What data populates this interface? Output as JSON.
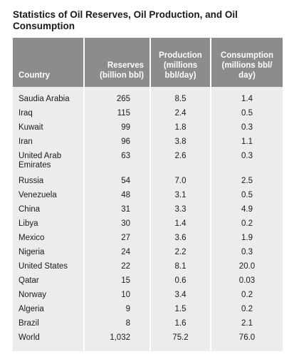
{
  "title": "Statistics of Oil Reserves, Oil Production, and Oil Consumption",
  "columns": {
    "country": "Country",
    "reserves": "Reserves (billion bbl)",
    "production": "Production (millions bbl/day)",
    "consumption": "Consumption (millions bbl/ day)"
  },
  "rows": [
    {
      "country": "Saudia Arabia",
      "reserves": "265",
      "production": "8.5",
      "consumption": "1.4"
    },
    {
      "country": "Iraq",
      "reserves": "115",
      "production": "2.4",
      "consumption": "0.5"
    },
    {
      "country": "Kuwait",
      "reserves": "99",
      "production": "1.8",
      "consumption": "0.3"
    },
    {
      "country": "Iran",
      "reserves": "96",
      "production": "3.8",
      "consumption": "1.1"
    },
    {
      "country": "United Arab Emirates",
      "reserves": "63",
      "production": "2.6",
      "consumption": "0.3"
    },
    {
      "country": "Russia",
      "reserves": "54",
      "production": "7.0",
      "consumption": "2.5"
    },
    {
      "country": "Venezuela",
      "reserves": "48",
      "production": "3.1",
      "consumption": "0.5"
    },
    {
      "country": "China",
      "reserves": "31",
      "production": "3.3",
      "consumption": "4.9"
    },
    {
      "country": "Libya",
      "reserves": "30",
      "production": "1.4",
      "consumption": "0.2"
    },
    {
      "country": "Mexico",
      "reserves": "27",
      "production": "3.6",
      "consumption": "1.9"
    },
    {
      "country": "Nigeria",
      "reserves": "24",
      "production": "2.2",
      "consumption": "0.3"
    },
    {
      "country": "United States",
      "reserves": "22",
      "production": "8.1",
      "consumption": "20.0"
    },
    {
      "country": "Qatar",
      "reserves": "15",
      "production": "0.6",
      "consumption": "0.03"
    },
    {
      "country": "Norway",
      "reserves": "10",
      "production": "3.4",
      "consumption": "0.2"
    },
    {
      "country": "Algeria",
      "reserves": "9",
      "production": "1.5",
      "consumption": "0.2"
    },
    {
      "country": "Brazil",
      "reserves": "8",
      "production": "1.6",
      "consumption": "2.1"
    },
    {
      "country": "World",
      "reserves": "1,032",
      "production": "75.2",
      "consumption": "76.0"
    }
  ]
}
